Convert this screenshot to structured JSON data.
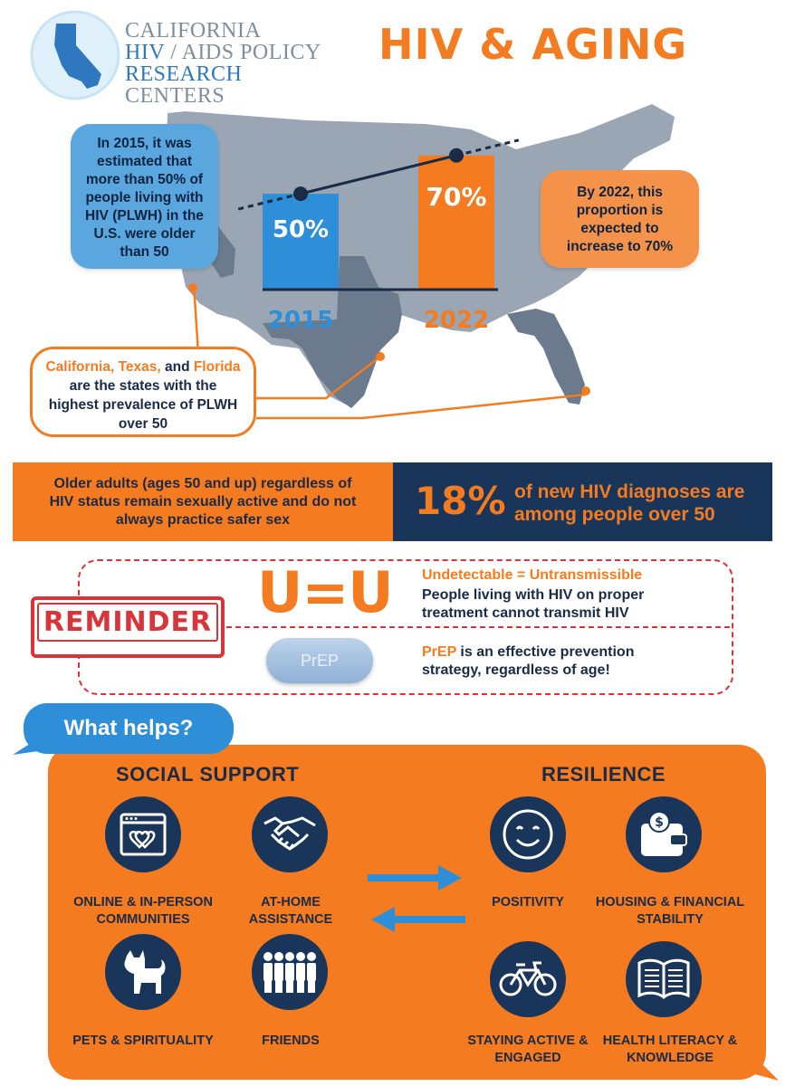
{
  "logo": {
    "line1": "CALIFORNIA",
    "line2a": "HIV",
    "line2b": " / AIDS POLICY",
    "line3a": "RESEARCH",
    "line3b": " CENTERS"
  },
  "title": "HIV & AGING",
  "intro_bubble": "In 2015, it was estimated that more than 50% of people living with HIV (PLWH) in the U.S. were older than 50",
  "projection_bubble": "By 2022, this proportion is expected to increase to 70%",
  "chart_data": {
    "type": "bar",
    "categories": [
      "2015",
      "2022"
    ],
    "values": [
      50,
      70
    ],
    "value_labels": [
      "50%",
      "70%"
    ],
    "ylim": [
      0,
      85
    ],
    "colors": [
      "#2e8fd8",
      "#f47b20"
    ]
  },
  "states_callout": {
    "s1": "California, Texas,",
    "s2": " and ",
    "s3": "Florida",
    "s4": " are the states with the highest prevalence of PLWH over 50"
  },
  "band": {
    "left_text": "Older adults (ages 50 and up) regardless of HIV status remain sexually active and do not always practice safer sex",
    "stat": "18%",
    "stat_text": "of new HIV diagnoses are among people over 50"
  },
  "reminder": {
    "stamp": "REMINDER",
    "uu": "U=U",
    "uu_title": "Undetectable = Untransmissible",
    "uu_text": "People living with HIV on proper treatment cannot transmit HIV",
    "pill_label": "PrEP",
    "prep_a": "PrEP",
    "prep_b": " is an effective prevention strategy, regardless of age!"
  },
  "what_helps": "What helps?",
  "social": {
    "heading": "SOCIAL SUPPORT",
    "items": [
      {
        "label": "ONLINE & IN-PERSON COMMUNITIES",
        "icon": "browser-hearts-icon"
      },
      {
        "label": "AT-HOME ASSISTANCE",
        "icon": "handshake-icon"
      },
      {
        "label": "PETS & SPIRITUALITY",
        "icon": "dog-icon"
      },
      {
        "label": "FRIENDS",
        "icon": "people-group-icon"
      }
    ]
  },
  "resilience": {
    "heading": "RESILIENCE",
    "items": [
      {
        "label": "POSITIVITY",
        "icon": "smiley-icon"
      },
      {
        "label": "HOUSING & FINANCIAL STABILITY",
        "icon": "wallet-icon"
      },
      {
        "label": "STAYING ACTIVE & ENGAGED",
        "icon": "bicycle-icon"
      },
      {
        "label": "HEALTH LITERACY & KNOWLEDGE",
        "icon": "open-book-icon"
      }
    ]
  },
  "colors": {
    "orange": "#f47b20",
    "navy": "#19365a",
    "blue": "#2e8fd8",
    "red": "#d9343a"
  }
}
